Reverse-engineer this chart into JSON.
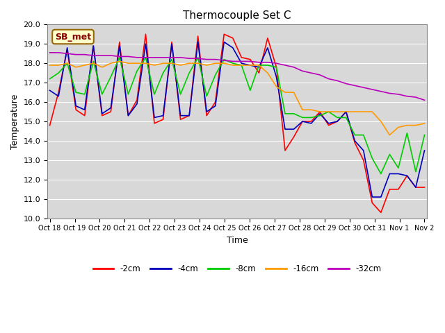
{
  "title": "Thermocouple Set C",
  "xlabel": "Time",
  "ylabel": "Temperature",
  "ylim": [
    10.0,
    20.0
  ],
  "yticks": [
    10.0,
    11.0,
    12.0,
    13.0,
    14.0,
    15.0,
    16.0,
    17.0,
    18.0,
    19.0,
    20.0
  ],
  "xtick_labels": [
    "Oct 18",
    "Oct 19",
    "Oct 20",
    "Oct 21",
    "Oct 22",
    "Oct 23",
    "Oct 24",
    "Oct 25",
    "Oct 26",
    "Oct 27",
    "Oct 28",
    "Oct 29",
    "Oct 30",
    "Oct 31",
    "Nov 1",
    "Nov 2"
  ],
  "legend_labels": [
    "-2cm",
    "-4cm",
    "-8cm",
    "-16cm",
    "-32cm"
  ],
  "legend_colors": [
    "#ff0000",
    "#0000bb",
    "#00cc00",
    "#ff9900",
    "#bb00bb"
  ],
  "annotation_text": "SB_met",
  "annotation_bg": "#ffffcc",
  "annotation_border": "#996600",
  "fig_bg": "#d8d8d8",
  "plot_bg": "#d8d8d8",
  "outer_bg": "#ffffff",
  "grid_color": "#ffffff",
  "line_width": 1.2,
  "series_n2cm": [
    14.8,
    16.5,
    18.7,
    15.6,
    15.3,
    18.9,
    15.3,
    15.5,
    19.1,
    15.3,
    16.1,
    19.5,
    14.9,
    15.1,
    19.1,
    15.1,
    15.3,
    19.4,
    15.3,
    16.0,
    19.5,
    19.3,
    18.3,
    18.2,
    17.5,
    19.3,
    17.8,
    13.5,
    14.2,
    15.0,
    15.0,
    15.5,
    14.8,
    15.0,
    15.5,
    13.9,
    13.0,
    10.8,
    10.3,
    11.5,
    11.5,
    12.2,
    11.6,
    11.6
  ],
  "series_n4cm": [
    16.6,
    16.3,
    18.8,
    15.8,
    15.6,
    18.9,
    15.4,
    15.7,
    18.9,
    15.3,
    15.9,
    19.0,
    15.2,
    15.3,
    19.0,
    15.3,
    15.3,
    19.1,
    15.5,
    15.8,
    19.1,
    18.8,
    18.0,
    17.9,
    17.8,
    18.8,
    17.3,
    14.6,
    14.6,
    15.0,
    14.9,
    15.4,
    14.9,
    15.0,
    15.5,
    14.0,
    13.5,
    11.1,
    11.1,
    12.3,
    12.3,
    12.2,
    11.6,
    13.5
  ],
  "series_n8cm": [
    17.2,
    17.5,
    18.0,
    16.5,
    16.4,
    18.1,
    16.4,
    17.3,
    18.3,
    16.4,
    17.6,
    18.3,
    16.4,
    17.5,
    18.2,
    16.4,
    17.5,
    18.3,
    16.3,
    17.4,
    18.2,
    18.0,
    17.9,
    16.6,
    17.9,
    17.9,
    17.8,
    15.4,
    15.4,
    15.2,
    15.2,
    15.3,
    15.5,
    15.2,
    15.2,
    14.3,
    14.3,
    13.1,
    12.3,
    13.3,
    12.6,
    14.4,
    12.4,
    14.3
  ],
  "series_n16cm": [
    17.9,
    17.9,
    18.0,
    17.8,
    17.9,
    18.0,
    17.8,
    18.0,
    18.1,
    18.0,
    18.0,
    18.0,
    17.9,
    18.0,
    18.0,
    17.9,
    18.0,
    18.0,
    17.9,
    18.0,
    18.0,
    17.9,
    17.9,
    17.9,
    17.9,
    17.5,
    16.8,
    16.5,
    16.5,
    15.6,
    15.6,
    15.5,
    15.5,
    15.5,
    15.5,
    15.5,
    15.5,
    15.5,
    15.0,
    14.3,
    14.7,
    14.8,
    14.8,
    14.9
  ],
  "series_n32cm": [
    18.55,
    18.55,
    18.5,
    18.45,
    18.45,
    18.4,
    18.4,
    18.4,
    18.35,
    18.35,
    18.3,
    18.3,
    18.3,
    18.3,
    18.3,
    18.3,
    18.25,
    18.25,
    18.2,
    18.2,
    18.15,
    18.1,
    18.1,
    18.1,
    18.05,
    18.05,
    18.0,
    17.9,
    17.8,
    17.6,
    17.5,
    17.4,
    17.2,
    17.1,
    16.95,
    16.85,
    16.75,
    16.65,
    16.55,
    16.45,
    16.4,
    16.3,
    16.25,
    16.1
  ]
}
